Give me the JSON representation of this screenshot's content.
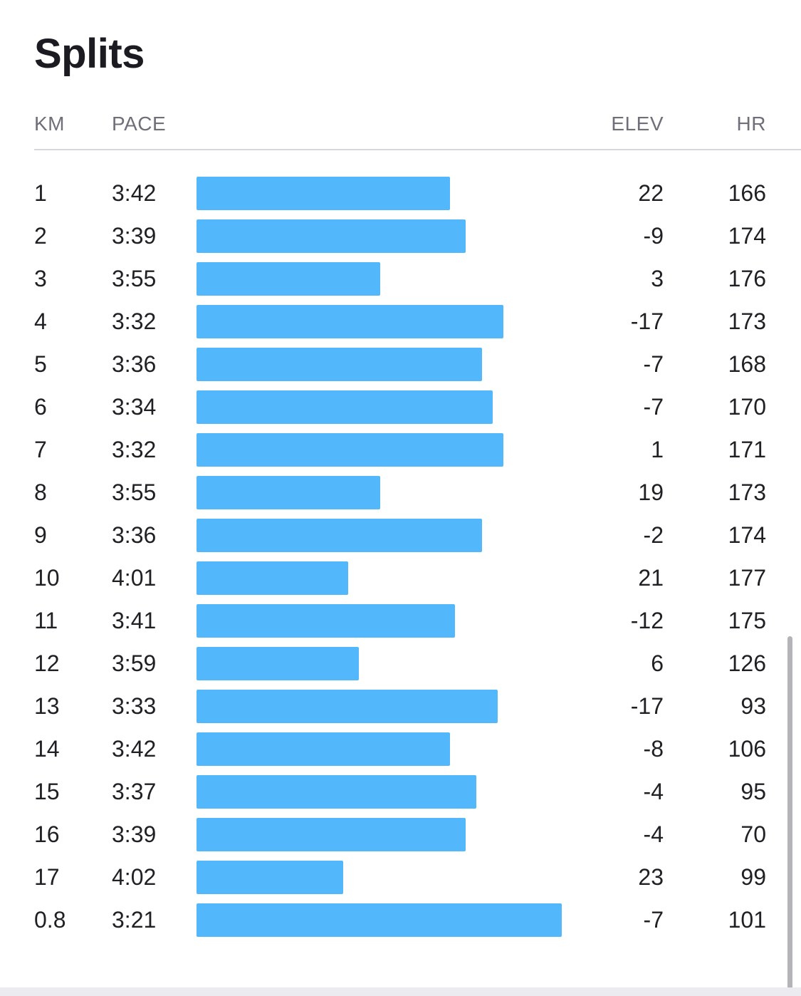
{
  "title": "Splits",
  "columns": {
    "km": "KM",
    "pace": "PACE",
    "elev": "ELEV",
    "hr": "HR"
  },
  "colors": {
    "bar": "#52b8fb",
    "text": "#1d1d22",
    "header_text": "#6f6f7a",
    "divider": "#d6d6db"
  },
  "splits": [
    {
      "km": "1",
      "pace": "3:42",
      "elev": "22",
      "hr": "166"
    },
    {
      "km": "2",
      "pace": "3:39",
      "elev": "-9",
      "hr": "174"
    },
    {
      "km": "3",
      "pace": "3:55",
      "elev": "3",
      "hr": "176"
    },
    {
      "km": "4",
      "pace": "3:32",
      "elev": "-17",
      "hr": "173"
    },
    {
      "km": "5",
      "pace": "3:36",
      "elev": "-7",
      "hr": "168"
    },
    {
      "km": "6",
      "pace": "3:34",
      "elev": "-7",
      "hr": "170"
    },
    {
      "km": "7",
      "pace": "3:32",
      "elev": "1",
      "hr": "171"
    },
    {
      "km": "8",
      "pace": "3:55",
      "elev": "19",
      "hr": "173"
    },
    {
      "km": "9",
      "pace": "3:36",
      "elev": "-2",
      "hr": "174"
    },
    {
      "km": "10",
      "pace": "4:01",
      "elev": "21",
      "hr": "177"
    },
    {
      "km": "11",
      "pace": "3:41",
      "elev": "-12",
      "hr": "175"
    },
    {
      "km": "12",
      "pace": "3:59",
      "elev": "6",
      "hr": "126"
    },
    {
      "km": "13",
      "pace": "3:33",
      "elev": "-17",
      "hr": "93"
    },
    {
      "km": "14",
      "pace": "3:42",
      "elev": "-8",
      "hr": "106"
    },
    {
      "km": "15",
      "pace": "3:37",
      "elev": "-4",
      "hr": "95"
    },
    {
      "km": "16",
      "pace": "3:39",
      "elev": "-4",
      "hr": "70"
    },
    {
      "km": "17",
      "pace": "4:02",
      "elev": "23",
      "hr": "99"
    },
    {
      "km": "0.8",
      "pace": "3:21",
      "elev": "-7",
      "hr": "101"
    }
  ]
}
